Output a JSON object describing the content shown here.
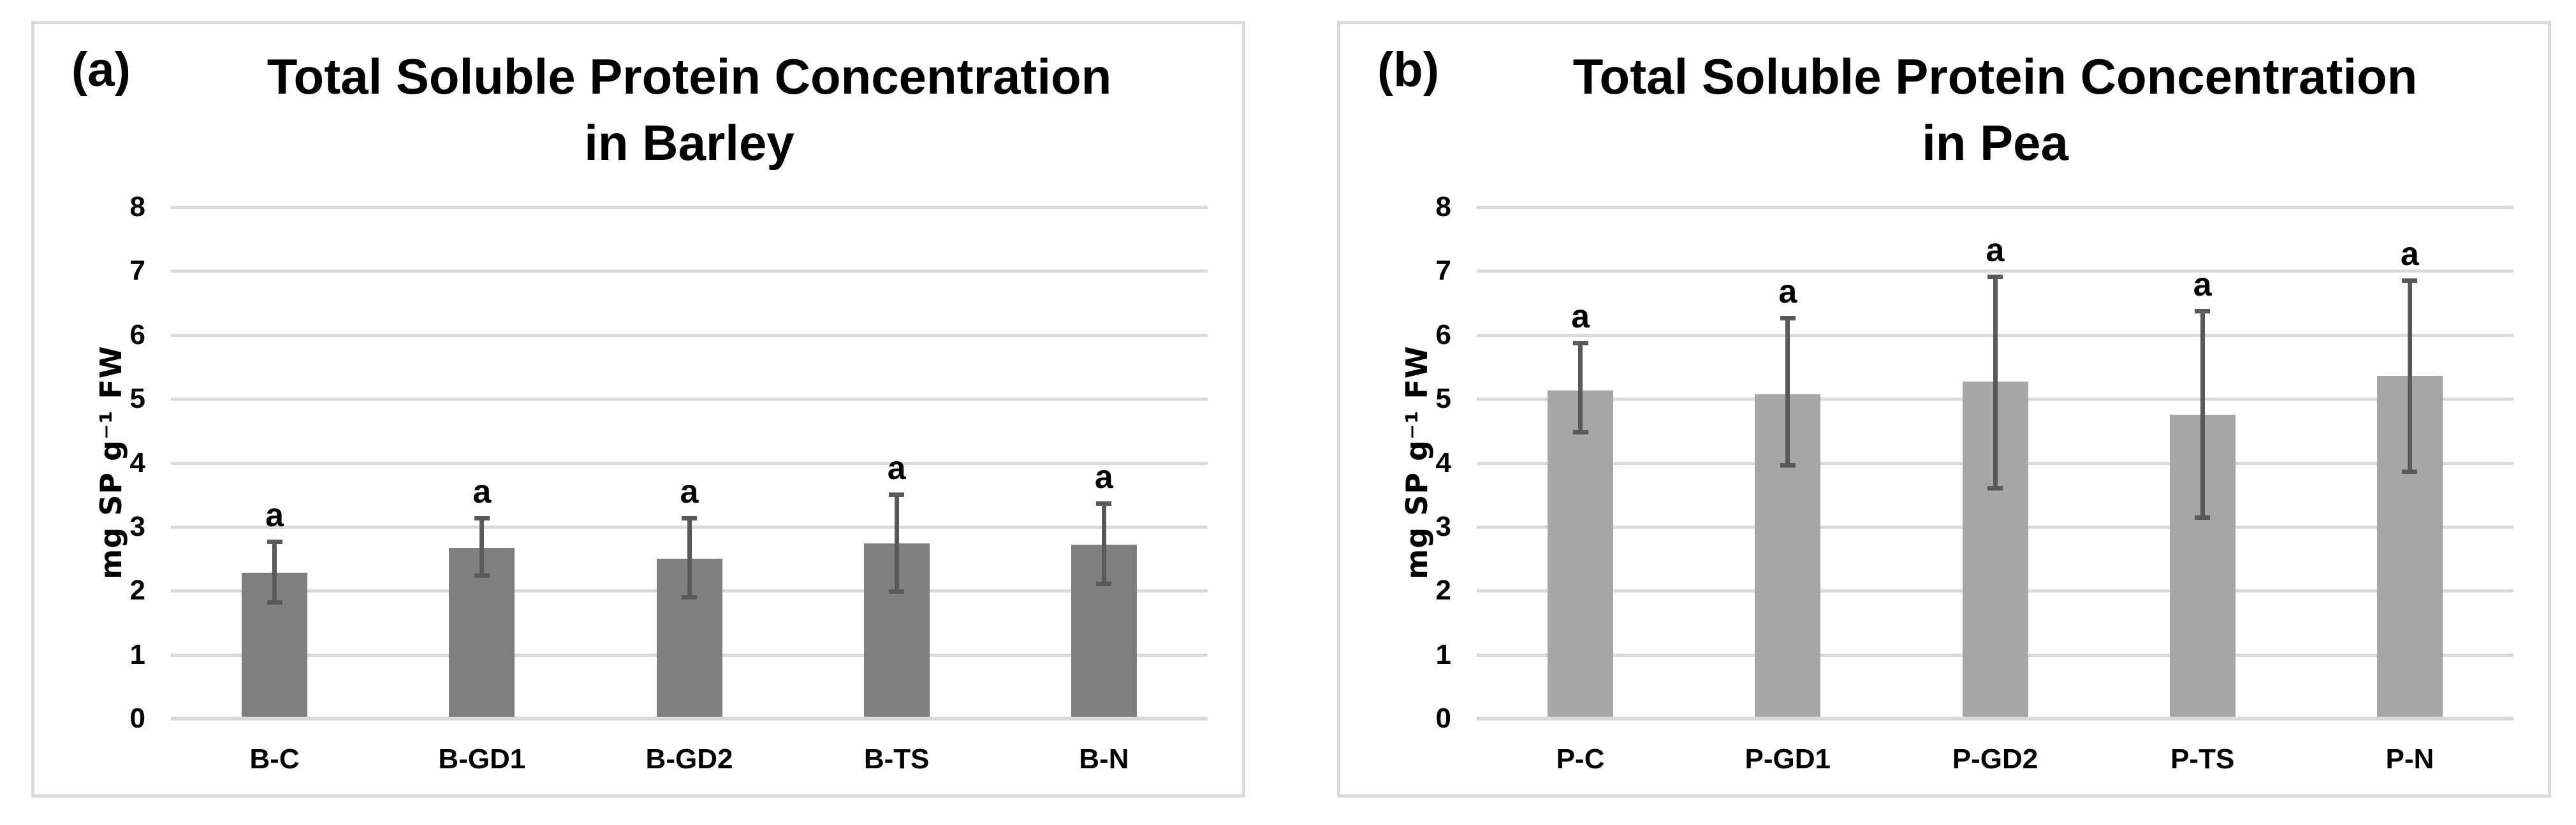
{
  "chart_data": [
    {
      "type": "bar",
      "panel_label": "(a)",
      "title": "Total Soluble Protein Concentration in Barley",
      "title_line1": "Total Soluble Protein Concentration",
      "title_line2": "in Barley",
      "categories": [
        "B-C",
        "B-GD1",
        "B-GD2",
        "B-TS",
        "B-N"
      ],
      "values": [
        2.28,
        2.67,
        2.5,
        2.74,
        2.72
      ],
      "error_bar_top": [
        2.76,
        3.13,
        3.13,
        3.5,
        3.36
      ],
      "error_bar_bottom": [
        1.81,
        2.23,
        1.89,
        1.98,
        2.1
      ],
      "bar_labels": [
        "a",
        "a",
        "a",
        "a",
        "a"
      ],
      "xlabel": "",
      "ylabel": "mg SP g⁻¹ FW",
      "ylim": [
        0,
        8
      ],
      "yticks": [
        0,
        1,
        2,
        3,
        4,
        5,
        6,
        7,
        8
      ],
      "bar_color": "#7f7f7f",
      "grid": "horizontal",
      "legend": "none"
    },
    {
      "type": "bar",
      "panel_label": "(b)",
      "title": "Total Soluble Protein Concentration in Pea",
      "title_line1": "Total Soluble Protein Concentration",
      "title_line2": "in Pea",
      "categories": [
        "P-C",
        "P-GD1",
        "P-GD2",
        "P-TS",
        "P-N"
      ],
      "values": [
        5.13,
        5.07,
        5.27,
        4.75,
        5.36
      ],
      "error_bar_top": [
        5.87,
        6.26,
        6.9,
        6.37,
        6.84
      ],
      "error_bar_bottom": [
        4.47,
        3.96,
        3.6,
        3.14,
        3.86
      ],
      "bar_labels": [
        "a",
        "a",
        "a",
        "a",
        "a"
      ],
      "xlabel": "",
      "ylabel": "mg SP g⁻¹ FW",
      "ylim": [
        0,
        8
      ],
      "yticks": [
        0,
        1,
        2,
        3,
        4,
        5,
        6,
        7,
        8
      ],
      "bar_color": "#a6a6a6",
      "grid": "horizontal",
      "legend": "none"
    }
  ],
  "colors": {
    "background": "#ffffff",
    "panel_border": "#d9d9d9",
    "gridline": "#d9d9d9",
    "error_bar": "#595959",
    "bar_barley": "#7f7f7f",
    "bar_pea": "#a6a6a6",
    "text": "#000000"
  }
}
